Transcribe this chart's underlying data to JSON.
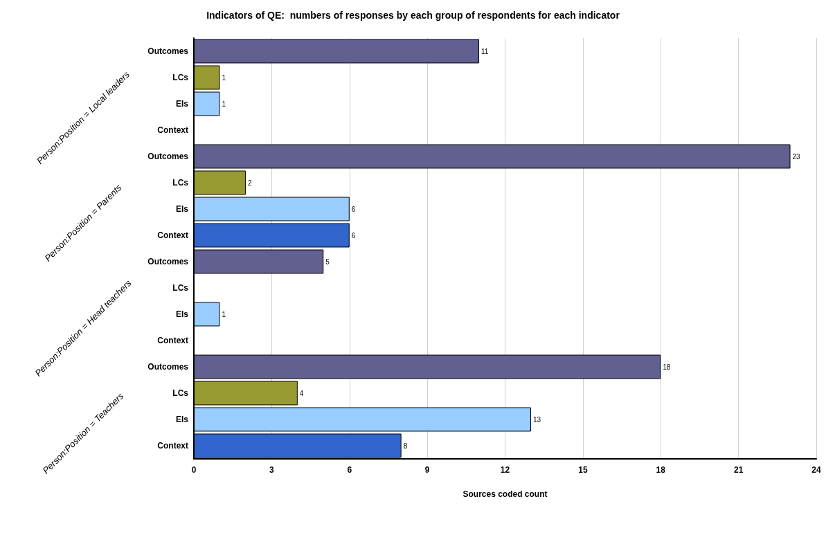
{
  "chart_data": {
    "type": "bar",
    "orientation": "horizontal",
    "title": "Indicators of QE:  numbers of responses by each group of respondents for each indicator",
    "xlabel": "Sources coded count",
    "categories": [
      "Outcomes",
      "LCs",
      "EIs",
      "Context",
      "Outcomes",
      "LCs",
      "EIs",
      "Context",
      "Outcomes",
      "LCs",
      "EIs",
      "Context",
      "Outcomes",
      "LCs",
      "EIs",
      "Context"
    ],
    "values": [
      11,
      1,
      1,
      null,
      23,
      2,
      6,
      6,
      5,
      null,
      1,
      null,
      18,
      4,
      13,
      8
    ],
    "colors": [
      "#625f91",
      "#989a32",
      "#99ccff",
      "#3366cc",
      "#625f91",
      "#989a32",
      "#99ccff",
      "#3366cc",
      "#625f91",
      "#989a32",
      "#99ccff",
      "#3366cc",
      "#625f91",
      "#989a32",
      "#99ccff",
      "#3366cc"
    ],
    "xlim": [
      0,
      24
    ],
    "xticks": [
      0,
      3,
      6,
      9,
      12,
      15,
      18,
      21,
      24
    ],
    "grid": "x",
    "data_labels": true,
    "annotations": [
      "Person:Position = Local leaders",
      "Person:Position = Parents",
      "Person:Position = Head teachers",
      "Person:Position = Teachers"
    ]
  }
}
